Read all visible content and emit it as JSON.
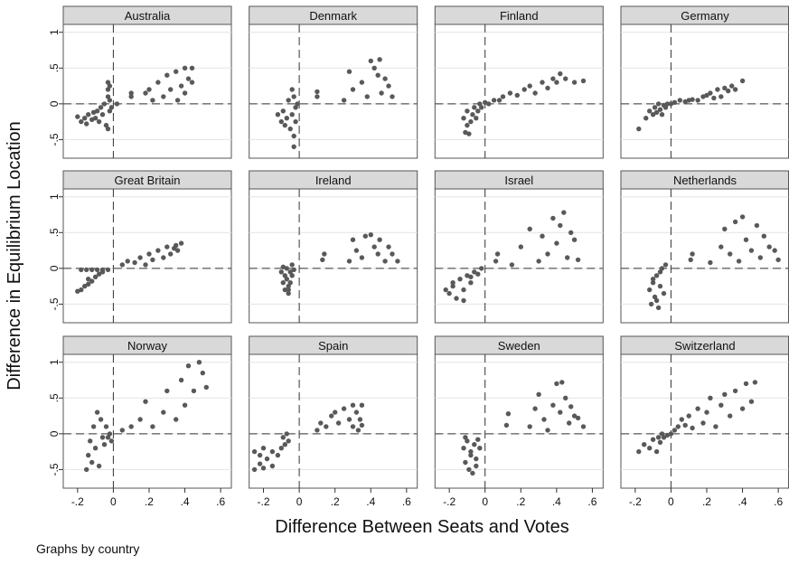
{
  "chart_data": {
    "type": "scatter",
    "ylabel": "Difference in Equilibrium Location",
    "xlabel": "Difference Between Seats and Votes",
    "note": "Graphs by country",
    "color": "#595959",
    "grid": true,
    "xlim": [
      -0.28,
      0.66
    ],
    "ylim": [
      -0.76,
      1.11
    ],
    "xticks": [
      {
        "value": -0.2,
        "label": "-.2"
      },
      0,
      {
        "value": 0.2,
        "label": ".2"
      },
      {
        "value": 0.4,
        "label": ".4"
      },
      {
        "value": 0.6,
        "label": ".6"
      }
    ],
    "yticks": [
      {
        "value": -0.5,
        "label": "-.5"
      },
      0,
      {
        "value": 0.5,
        "label": ".5"
      },
      1
    ],
    "panels": [
      {
        "name": "Australia",
        "x": [
          -0.2,
          -0.18,
          -0.16,
          -0.15,
          -0.14,
          -0.12,
          -0.11,
          -0.1,
          -0.09,
          -0.08,
          -0.07,
          -0.06,
          -0.05,
          -0.04,
          -0.03,
          -0.03,
          -0.03,
          -0.03,
          -0.02,
          -0.02,
          -0.02,
          -0.01,
          0.02,
          0.1,
          0.1,
          0.18,
          0.2,
          0.22,
          0.25,
          0.28,
          0.3,
          0.32,
          0.35,
          0.36,
          0.38,
          0.4,
          0.4,
          0.42,
          0.44,
          0.44
        ],
        "y": [
          -0.18,
          -0.25,
          -0.2,
          -0.28,
          -0.15,
          -0.22,
          -0.12,
          -0.2,
          -0.1,
          -0.25,
          -0.05,
          -0.15,
          0.0,
          -0.3,
          0.3,
          0.2,
          0.1,
          -0.35,
          0.25,
          -0.1,
          0.05,
          -0.05,
          0.0,
          0.1,
          0.15,
          0.15,
          0.2,
          0.05,
          0.3,
          0.1,
          0.4,
          0.2,
          0.45,
          0.05,
          0.25,
          0.5,
          0.15,
          0.35,
          0.5,
          0.3
        ]
      },
      {
        "name": "Denmark",
        "x": [
          -0.12,
          -0.1,
          -0.09,
          -0.08,
          -0.07,
          -0.06,
          -0.05,
          -0.04,
          -0.04,
          -0.03,
          -0.03,
          -0.03,
          -0.02,
          -0.02,
          -0.01,
          0.1,
          0.1,
          0.25,
          0.28,
          0.3,
          0.35,
          0.38,
          0.4,
          0.42,
          0.44,
          0.45,
          0.46,
          0.48,
          0.5,
          0.52
        ],
        "y": [
          -0.15,
          -0.25,
          -0.1,
          -0.3,
          -0.2,
          0.05,
          -0.35,
          -0.15,
          0.2,
          -0.45,
          -0.6,
          0.1,
          -0.05,
          -0.25,
          0.0,
          0.1,
          0.17,
          0.05,
          0.45,
          0.2,
          0.3,
          0.1,
          0.6,
          0.5,
          0.4,
          0.62,
          0.15,
          0.35,
          0.25,
          0.1
        ]
      },
      {
        "name": "Finland",
        "x": [
          -0.12,
          -0.11,
          -0.1,
          -0.1,
          -0.09,
          -0.08,
          -0.07,
          -0.06,
          -0.05,
          -0.04,
          -0.03,
          -0.02,
          0.0,
          0.02,
          0.05,
          0.08,
          0.1,
          0.14,
          0.18,
          0.22,
          0.25,
          0.28,
          0.32,
          0.35,
          0.38,
          0.4,
          0.42,
          0.45,
          0.5,
          0.55
        ],
        "y": [
          -0.2,
          -0.4,
          -0.3,
          -0.1,
          -0.42,
          -0.25,
          -0.15,
          -0.05,
          -0.2,
          -0.1,
          0.0,
          -0.05,
          0.02,
          0.0,
          0.05,
          0.05,
          0.1,
          0.15,
          0.12,
          0.2,
          0.25,
          0.15,
          0.3,
          0.22,
          0.35,
          0.3,
          0.42,
          0.35,
          0.3,
          0.32
        ]
      },
      {
        "name": "Germany",
        "x": [
          -0.18,
          -0.14,
          -0.12,
          -0.1,
          -0.09,
          -0.08,
          -0.07,
          -0.06,
          -0.05,
          -0.04,
          -0.03,
          -0.02,
          0.0,
          0.02,
          0.05,
          0.08,
          0.1,
          0.12,
          0.15,
          0.18,
          0.2,
          0.22,
          0.24,
          0.26,
          0.28,
          0.3,
          0.32,
          0.34,
          0.36,
          0.4
        ],
        "y": [
          -0.35,
          -0.2,
          -0.1,
          -0.15,
          -0.05,
          -0.12,
          0.0,
          -0.08,
          -0.15,
          -0.02,
          -0.05,
          0.0,
          0.0,
          0.02,
          0.05,
          0.03,
          0.05,
          0.06,
          0.05,
          0.1,
          0.12,
          0.15,
          0.08,
          0.2,
          0.1,
          0.22,
          0.18,
          0.25,
          0.2,
          0.32
        ]
      },
      {
        "name": "Great Britain",
        "x": [
          -0.2,
          -0.18,
          -0.16,
          -0.14,
          -0.12,
          -0.1,
          -0.08,
          -0.06,
          -0.18,
          -0.15,
          -0.12,
          -0.09,
          -0.06,
          -0.03,
          -0.14,
          0.05,
          0.08,
          0.12,
          0.15,
          0.18,
          0.2,
          0.22,
          0.25,
          0.28,
          0.3,
          0.32,
          0.34,
          0.35,
          0.36,
          0.38
        ],
        "y": [
          -0.32,
          -0.3,
          -0.25,
          -0.22,
          -0.18,
          -0.12,
          -0.08,
          -0.05,
          -0.02,
          -0.02,
          -0.02,
          -0.02,
          -0.02,
          -0.02,
          -0.15,
          0.05,
          0.1,
          0.08,
          0.15,
          0.05,
          0.2,
          0.12,
          0.25,
          0.15,
          0.3,
          0.2,
          0.28,
          0.32,
          0.25,
          0.35
        ]
      },
      {
        "name": "Ireland",
        "x": [
          -0.1,
          -0.09,
          -0.08,
          -0.08,
          -0.07,
          -0.07,
          -0.06,
          -0.06,
          -0.05,
          -0.05,
          -0.04,
          -0.04,
          -0.03,
          -0.09,
          -0.06,
          0.13,
          0.14,
          0.28,
          0.3,
          0.32,
          0.35,
          0.37,
          0.4,
          0.42,
          0.44,
          0.45,
          0.48,
          0.5,
          0.52,
          0.55
        ],
        "y": [
          -0.05,
          -0.2,
          -0.1,
          -0.3,
          -0.15,
          0.0,
          -0.25,
          -0.35,
          -0.05,
          -0.2,
          0.05,
          -0.1,
          -0.02,
          0.02,
          -0.3,
          0.12,
          0.2,
          0.1,
          0.4,
          0.25,
          0.15,
          0.45,
          0.47,
          0.3,
          0.2,
          0.4,
          0.1,
          0.3,
          0.2,
          0.1
        ]
      },
      {
        "name": "Israel",
        "x": [
          -0.22,
          -0.2,
          -0.18,
          -0.16,
          -0.14,
          -0.12,
          -0.1,
          -0.08,
          -0.06,
          -0.04,
          -0.02,
          -0.18,
          -0.12,
          -0.08,
          0.06,
          0.07,
          0.15,
          0.2,
          0.25,
          0.3,
          0.32,
          0.35,
          0.38,
          0.4,
          0.42,
          0.44,
          0.46,
          0.48,
          0.5,
          0.52
        ],
        "y": [
          -0.3,
          -0.35,
          -0.2,
          -0.42,
          -0.15,
          -0.3,
          -0.1,
          -0.2,
          -0.05,
          -0.08,
          0.0,
          -0.25,
          -0.45,
          -0.12,
          0.1,
          0.2,
          0.05,
          0.3,
          0.55,
          0.1,
          0.45,
          0.2,
          0.7,
          0.35,
          0.6,
          0.78,
          0.15,
          0.5,
          0.4,
          0.12
        ]
      },
      {
        "name": "Netherlands",
        "x": [
          -0.12,
          -0.11,
          -0.1,
          -0.09,
          -0.08,
          -0.07,
          -0.06,
          -0.05,
          -0.04,
          -0.03,
          -0.1,
          -0.08,
          -0.06,
          0.11,
          0.12,
          0.22,
          0.28,
          0.3,
          0.33,
          0.36,
          0.38,
          0.4,
          0.42,
          0.45,
          0.48,
          0.5,
          0.52,
          0.55,
          0.58,
          0.6
        ],
        "y": [
          -0.3,
          -0.5,
          -0.2,
          -0.4,
          -0.1,
          -0.55,
          -0.25,
          0.0,
          -0.35,
          0.05,
          -0.15,
          -0.45,
          -0.05,
          0.12,
          0.2,
          0.08,
          0.3,
          0.55,
          0.2,
          0.65,
          0.1,
          0.72,
          0.4,
          0.25,
          0.6,
          0.15,
          0.45,
          0.3,
          0.25,
          0.12
        ]
      },
      {
        "name": "Norway",
        "x": [
          -0.15,
          -0.14,
          -0.13,
          -0.12,
          -0.11,
          -0.1,
          -0.09,
          -0.08,
          -0.07,
          -0.06,
          -0.05,
          -0.04,
          -0.03,
          -0.02,
          -0.01,
          0.05,
          0.1,
          0.15,
          0.18,
          0.22,
          0.28,
          0.3,
          0.35,
          0.38,
          0.4,
          0.42,
          0.45,
          0.48,
          0.5,
          0.52
        ],
        "y": [
          -0.5,
          -0.3,
          -0.1,
          -0.4,
          0.1,
          -0.2,
          0.3,
          -0.45,
          0.2,
          -0.05,
          -0.15,
          0.1,
          -0.05,
          0.0,
          -0.1,
          0.05,
          0.1,
          0.2,
          0.45,
          0.1,
          0.3,
          0.6,
          0.2,
          0.75,
          0.4,
          0.95,
          0.6,
          1.0,
          0.85,
          0.65
        ]
      },
      {
        "name": "Spain",
        "x": [
          -0.25,
          -0.25,
          -0.22,
          -0.22,
          -0.2,
          -0.2,
          -0.18,
          -0.15,
          -0.15,
          -0.12,
          -0.1,
          -0.09,
          -0.08,
          -0.07,
          -0.06,
          0.1,
          0.12,
          0.15,
          0.18,
          0.2,
          0.22,
          0.25,
          0.28,
          0.3,
          0.3,
          0.32,
          0.33,
          0.34,
          0.35,
          0.35
        ],
        "y": [
          -0.5,
          -0.25,
          -0.42,
          -0.3,
          -0.48,
          -0.2,
          -0.35,
          -0.45,
          -0.25,
          -0.3,
          -0.2,
          -0.05,
          -0.15,
          0.0,
          -0.1,
          0.05,
          0.15,
          0.1,
          0.25,
          0.3,
          0.15,
          0.35,
          0.2,
          0.4,
          0.1,
          0.3,
          0.05,
          0.2,
          0.4,
          0.12
        ]
      },
      {
        "name": "Sweden",
        "x": [
          -0.12,
          -0.11,
          -0.1,
          -0.09,
          -0.08,
          -0.07,
          -0.06,
          -0.05,
          -0.04,
          -0.03,
          -0.11,
          -0.08,
          -0.05,
          0.12,
          0.13,
          0.25,
          0.28,
          0.3,
          0.33,
          0.35,
          0.38,
          0.4,
          0.42,
          0.43,
          0.45,
          0.47,
          0.48,
          0.5,
          0.52,
          0.55
        ],
        "y": [
          -0.2,
          -0.4,
          -0.1,
          -0.5,
          -0.3,
          -0.55,
          -0.15,
          -0.35,
          -0.08,
          -0.2,
          -0.05,
          -0.25,
          -0.45,
          0.12,
          0.28,
          0.1,
          0.35,
          0.55,
          0.2,
          0.05,
          0.4,
          0.7,
          0.3,
          0.72,
          0.5,
          0.15,
          0.38,
          0.25,
          0.22,
          0.1
        ]
      },
      {
        "name": "Switzerland",
        "x": [
          -0.18,
          -0.15,
          -0.12,
          -0.1,
          -0.08,
          -0.07,
          -0.06,
          -0.05,
          -0.04,
          -0.02,
          0.0,
          0.02,
          0.04,
          0.06,
          0.08,
          0.1,
          0.12,
          0.15,
          0.18,
          0.2,
          0.22,
          0.25,
          0.28,
          0.3,
          0.33,
          0.36,
          0.4,
          0.42,
          0.45,
          0.47
        ],
        "y": [
          -0.25,
          -0.15,
          -0.2,
          -0.08,
          -0.25,
          -0.05,
          -0.12,
          0.0,
          -0.05,
          -0.02,
          0.0,
          0.05,
          0.1,
          0.2,
          0.12,
          0.25,
          0.08,
          0.35,
          0.15,
          0.3,
          0.5,
          0.1,
          0.4,
          0.55,
          0.25,
          0.6,
          0.35,
          0.7,
          0.45,
          0.72
        ]
      }
    ]
  }
}
